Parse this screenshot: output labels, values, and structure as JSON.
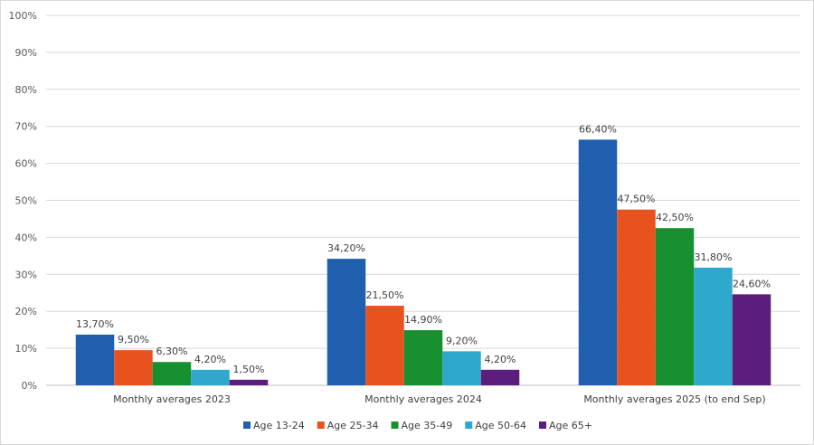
{
  "chart_data": {
    "type": "bar",
    "categories": [
      "Monthly averages 2023",
      "Monthly averages 2024",
      "Monthly averages 2025 (to end Sep)"
    ],
    "ylim": [
      0,
      100
    ],
    "yticks": [
      "0%",
      "10%",
      "20%",
      "30%",
      "40%",
      "50%",
      "60%",
      "70%",
      "80%",
      "90%",
      "100%"
    ],
    "ytick_values": [
      0,
      10,
      20,
      30,
      40,
      50,
      60,
      70,
      80,
      90,
      100
    ],
    "grid": true,
    "legend_position": "bottom",
    "series": [
      {
        "name": "Age 13-24",
        "color": "#1f5fad",
        "values": [
          13.7,
          34.2,
          66.4
        ],
        "labels": [
          "13,70%",
          "34,20%",
          "66,40%"
        ]
      },
      {
        "name": "Age 25-34",
        "color": "#e8521f",
        "values": [
          9.5,
          21.5,
          47.5
        ],
        "labels": [
          "9,50%",
          "21,50%",
          "47,50%"
        ]
      },
      {
        "name": "Age 35-49",
        "color": "#17902f",
        "values": [
          6.3,
          14.9,
          42.5
        ],
        "labels": [
          "6,30%",
          "14,90%",
          "42,50%"
        ]
      },
      {
        "name": "Age 50-64",
        "color": "#2ea8cc",
        "values": [
          4.2,
          9.2,
          31.8
        ],
        "labels": [
          "4,20%",
          "9,20%",
          "31,80%"
        ]
      },
      {
        "name": "Age 65+",
        "color": "#5c1e7d",
        "values": [
          1.5,
          4.2,
          24.6
        ],
        "labels": [
          "1,50%",
          "4,20%",
          "24,60%"
        ]
      }
    ]
  }
}
